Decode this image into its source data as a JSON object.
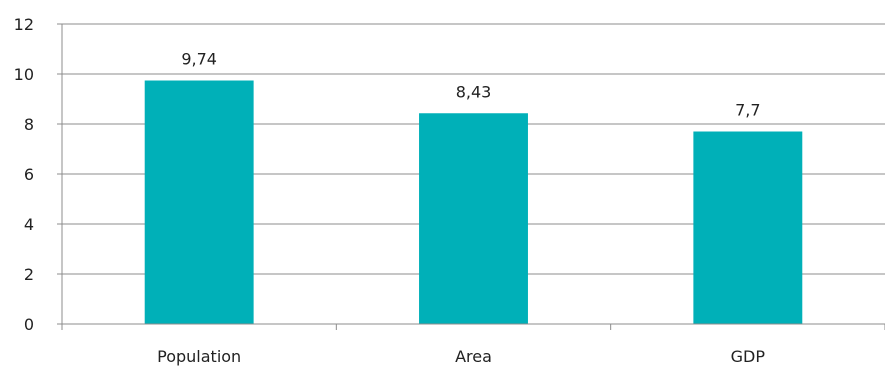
{
  "chart_data": {
    "type": "bar",
    "categories": [
      "Population",
      "Area",
      "GDP"
    ],
    "values": [
      9.74,
      8.43,
      7.7
    ],
    "data_labels": [
      "9,74",
      "8,43",
      "7,7"
    ],
    "y_ticks": [
      "0",
      "2",
      "4",
      "6",
      "8",
      "10",
      "12"
    ],
    "ylim": [
      0,
      12
    ],
    "grid": true,
    "legend": "none",
    "title": "",
    "xlabel": "",
    "ylabel": "",
    "colors": {
      "bar": "#00B0B8",
      "grid": "#8C8C8C",
      "axis": "#8C8C8C",
      "text": "#222222"
    }
  }
}
